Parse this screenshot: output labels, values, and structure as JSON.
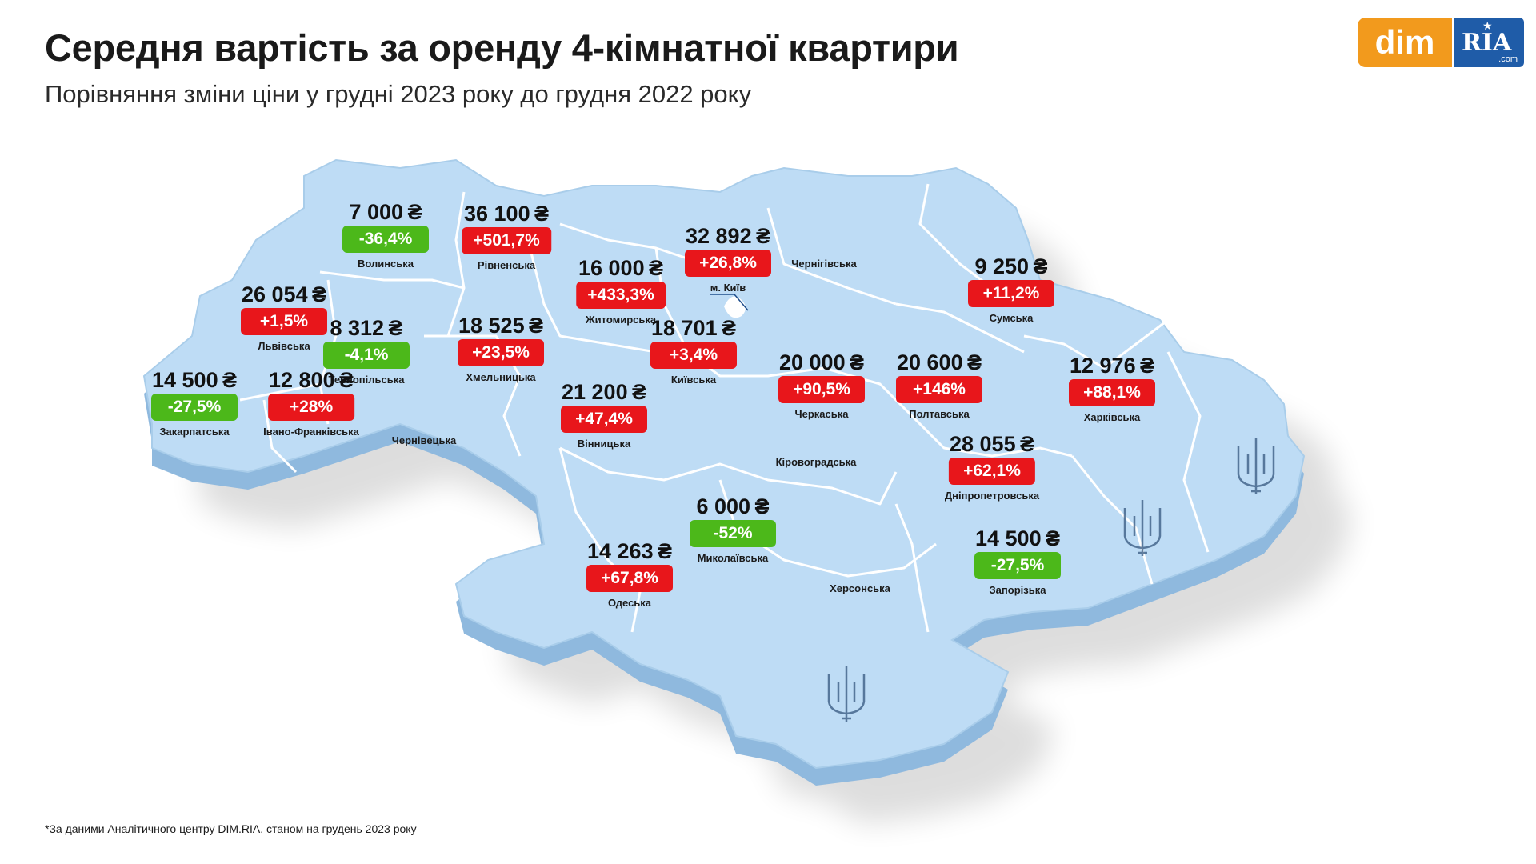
{
  "header": {
    "title": "Середня вартість за оренду 4-кімнатної квартири",
    "subtitle": "Порівняння зміни ціни у грудні 2023 року до грудня 2022 року"
  },
  "logo": {
    "dim": "dim",
    "ria": "RIA",
    "com": ".com"
  },
  "currency": "₴",
  "colors": {
    "map_fill": "#bedcf5",
    "map_side": "#8fb9de",
    "border": "#ffffff",
    "up": "#e8161b",
    "down": "#4cb81a"
  },
  "regions": [
    {
      "name": "Волинська",
      "price": "7 000",
      "change": "-36,4%",
      "trend": "down"
    },
    {
      "name": "Рівненська",
      "price": "36 100",
      "change": "+501,7%",
      "trend": "up"
    },
    {
      "name": "Львівська",
      "price": "26 054",
      "change": "+1,5%",
      "trend": "up"
    },
    {
      "name": "Тернопільська",
      "price": "8 312",
      "change": "-4,1%",
      "trend": "down"
    },
    {
      "name": "Хмельницька",
      "price": "18 525",
      "change": "+23,5%",
      "trend": "up"
    },
    {
      "name": "Закарпатська",
      "price": "14 500",
      "change": "-27,5%",
      "trend": "down"
    },
    {
      "name": "Івано-Франківська",
      "price": "12 800",
      "change": "+28%",
      "trend": "up"
    },
    {
      "name": "Житомирська",
      "price": "16 000",
      "change": "+433,3%",
      "trend": "up"
    },
    {
      "name": "м. Київ",
      "price": "32 892",
      "change": "+26,8%",
      "trend": "up"
    },
    {
      "name": "Київська",
      "price": "18 701",
      "change": "+3,4%",
      "trend": "up"
    },
    {
      "name": "Вінницька",
      "price": "21 200",
      "change": "+47,4%",
      "trend": "up"
    },
    {
      "name": "Черкаська",
      "price": "20 000",
      "change": "+90,5%",
      "trend": "up"
    },
    {
      "name": "Полтавська",
      "price": "20 600",
      "change": "+146%",
      "trend": "up"
    },
    {
      "name": "Сумська",
      "price": "9 250",
      "change": "+11,2%",
      "trend": "up"
    },
    {
      "name": "Харківська",
      "price": "12 976",
      "change": "+88,1%",
      "trend": "up"
    },
    {
      "name": "Дніпропетровська",
      "price": "28 055",
      "change": "+62,1%",
      "trend": "up"
    },
    {
      "name": "Миколаївська",
      "price": "6 000",
      "change": "-52%",
      "trend": "down"
    },
    {
      "name": "Одеська",
      "price": "14 263",
      "change": "+67,8%",
      "trend": "up"
    },
    {
      "name": "Запорізька",
      "price": "14 500",
      "change": "-27,5%",
      "trend": "down"
    }
  ],
  "unlabeled_regions": [
    "Чернігівська",
    "Чернівецька",
    "Кіровоградська",
    "Херсонська"
  ],
  "footnote": "*За даними Аналітичного центру DIM.RIA, станом на грудень 2023 року"
}
